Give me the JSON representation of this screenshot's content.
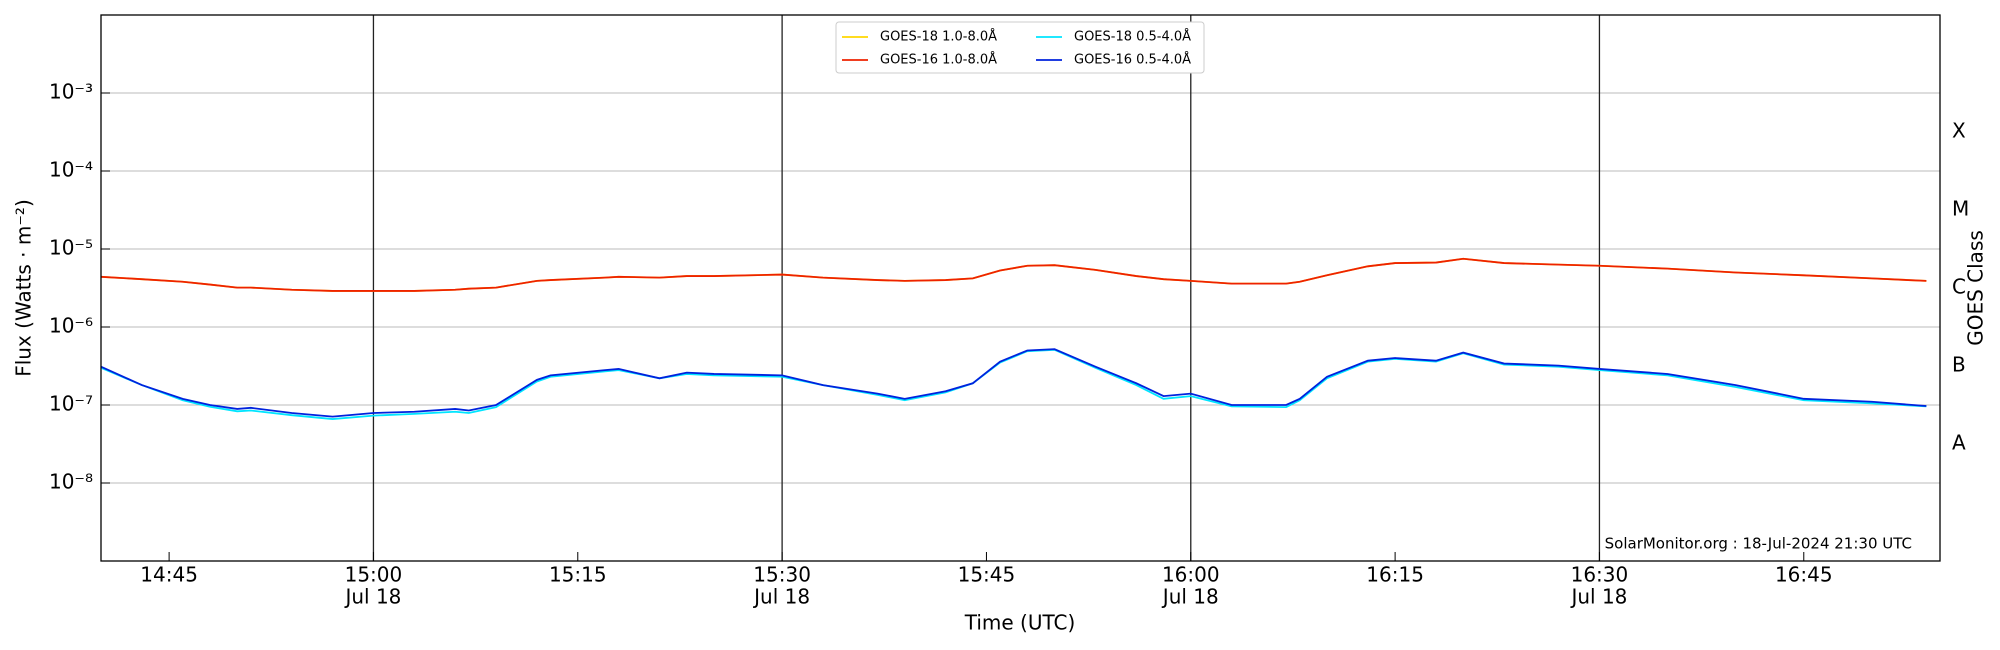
{
  "chart_data": {
    "type": "line",
    "xlabel": "Time (UTC)",
    "ylabel": "Flux (Watts · m⁻²)",
    "y2label": "GOES Class",
    "annotation": "SolarMonitor.org : 18-Jul-2024 21:30 UTC",
    "log_y": true,
    "grid": true,
    "x_major_lines": true,
    "legend": "top-center",
    "xlim": [
      "14:40",
      "16:55"
    ],
    "ylim": [
      1e-09,
      0.01
    ],
    "yticks": [
      {
        "value": 1e-08,
        "label": "10⁻⁸"
      },
      {
        "value": 1e-07,
        "label": "10⁻⁷"
      },
      {
        "value": 1e-06,
        "label": "10⁻⁶"
      },
      {
        "value": 1e-05,
        "label": "10⁻⁵"
      },
      {
        "value": 0.0001,
        "label": "10⁻⁴"
      },
      {
        "value": 0.001,
        "label": "10⁻³"
      }
    ],
    "y2lim": [
      1e-09,
      0.01
    ],
    "y2ticks": [
      {
        "value": 3.16e-08,
        "label": "A"
      },
      {
        "value": 3.16e-07,
        "label": "B"
      },
      {
        "value": 3.16e-06,
        "label": "C"
      },
      {
        "value": 3.16e-05,
        "label": "M"
      },
      {
        "value": 0.000316,
        "label": "X"
      }
    ],
    "xticks": [
      "14:45",
      {
        "value": "15:00",
        "label": "15:00",
        "sublabel": "Jul 18"
      },
      "15:15",
      {
        "value": "15:30",
        "label": "15:30",
        "sublabel": "Jul 18"
      },
      "15:45",
      {
        "value": "16:00",
        "label": "16:00",
        "sublabel": "Jul 18"
      },
      "16:15",
      {
        "value": "16:30",
        "label": "16:30",
        "sublabel": "Jul 18"
      },
      "16:45"
    ],
    "x": [
      "14:40",
      "14:43",
      "14:46",
      "14:48",
      "14:50",
      "14:51",
      "14:54",
      "14:57",
      "15:00",
      "15:03",
      "15:06",
      "15:07",
      "15:09",
      "15:12",
      "15:13",
      "15:17",
      "15:18",
      "15:21",
      "15:23",
      "15:25",
      "15:30",
      "15:33",
      "15:37",
      "15:39",
      "15:42",
      "15:44",
      "15:46",
      "15:48",
      "15:50",
      "15:53",
      "15:56",
      "15:58",
      "16:00",
      "16:03",
      "16:07",
      "16:08",
      "16:10",
      "16:13",
      "16:15",
      "16:18",
      "16:20",
      "16:23",
      "16:27",
      "16:30",
      "16:35",
      "16:40",
      "16:45",
      "16:50",
      "16:54"
    ],
    "series": [
      {
        "name": "GOES-18 1.0-8.0Å",
        "color": "#ffd700",
        "values": [
          4.4e-06,
          4.1e-06,
          3.8e-06,
          3.5e-06,
          3.2e-06,
          3.2e-06,
          3e-06,
          2.9e-06,
          2.9e-06,
          2.9e-06,
          3e-06,
          3.1e-06,
          3.2e-06,
          3.9e-06,
          4e-06,
          4.3e-06,
          4.4e-06,
          4.3e-06,
          4.5e-06,
          4.5e-06,
          4.7e-06,
          4.3e-06,
          4e-06,
          3.9e-06,
          4e-06,
          4.2e-06,
          5.3e-06,
          6.1e-06,
          6.2e-06,
          5.4e-06,
          4.5e-06,
          4.1e-06,
          3.9e-06,
          3.6e-06,
          3.6e-06,
          3.8e-06,
          4.6e-06,
          6e-06,
          6.6e-06,
          6.7e-06,
          7.5e-06,
          6.6e-06,
          6.3e-06,
          6.1e-06,
          5.6e-06,
          5e-06,
          4.6e-06,
          4.2e-06,
          3.9e-06
        ]
      },
      {
        "name": "GOES-16 1.0-8.0Å",
        "color": "#ee2200",
        "values": [
          4.4e-06,
          4.1e-06,
          3.8e-06,
          3.5e-06,
          3.2e-06,
          3.2e-06,
          3e-06,
          2.9e-06,
          2.9e-06,
          2.9e-06,
          3e-06,
          3.1e-06,
          3.2e-06,
          3.9e-06,
          4e-06,
          4.3e-06,
          4.4e-06,
          4.3e-06,
          4.5e-06,
          4.5e-06,
          4.7e-06,
          4.3e-06,
          4e-06,
          3.9e-06,
          4e-06,
          4.2e-06,
          5.3e-06,
          6.1e-06,
          6.2e-06,
          5.4e-06,
          4.5e-06,
          4.1e-06,
          3.9e-06,
          3.6e-06,
          3.6e-06,
          3.8e-06,
          4.6e-06,
          6e-06,
          6.6e-06,
          6.7e-06,
          7.5e-06,
          6.6e-06,
          6.3e-06,
          6.1e-06,
          5.6e-06,
          5e-06,
          4.6e-06,
          4.2e-06,
          3.9e-06
        ]
      },
      {
        "name": "GOES-18 0.5-4.0Å",
        "color": "#00e5ff",
        "values": [
          3e-07,
          1.8e-07,
          1.15e-07,
          9.5e-08,
          8.3e-08,
          8.5e-08,
          7.4e-08,
          6.6e-08,
          7.3e-08,
          7.7e-08,
          8.2e-08,
          7.9e-08,
          9.4e-08,
          2e-07,
          2.3e-07,
          2.7e-07,
          2.8e-07,
          2.2e-07,
          2.5e-07,
          2.4e-07,
          2.3e-07,
          1.8e-07,
          1.35e-07,
          1.15e-07,
          1.45e-07,
          1.9e-07,
          3.5e-07,
          4.9e-07,
          5.1e-07,
          3e-07,
          1.8e-07,
          1.2e-07,
          1.3e-07,
          9.6e-08,
          9.4e-08,
          1.15e-07,
          2.2e-07,
          3.6e-07,
          3.9e-07,
          3.6e-07,
          4.6e-07,
          3.3e-07,
          3.1e-07,
          2.8e-07,
          2.4e-07,
          1.7e-07,
          1.15e-07,
          1.05e-07,
          9.6e-08
        ]
      },
      {
        "name": "GOES-16 0.5-4.0Å",
        "color": "#0022dd",
        "values": [
          3.1e-07,
          1.8e-07,
          1.2e-07,
          1e-07,
          8.9e-08,
          9.2e-08,
          7.9e-08,
          7.1e-08,
          7.9e-08,
          8.2e-08,
          8.9e-08,
          8.5e-08,
          1e-07,
          2.1e-07,
          2.4e-07,
          2.8e-07,
          2.9e-07,
          2.2e-07,
          2.6e-07,
          2.5e-07,
          2.4e-07,
          1.8e-07,
          1.4e-07,
          1.2e-07,
          1.5e-07,
          1.9e-07,
          3.6e-07,
          5e-07,
          5.2e-07,
          3.1e-07,
          1.9e-07,
          1.3e-07,
          1.4e-07,
          1e-07,
          1e-07,
          1.2e-07,
          2.3e-07,
          3.7e-07,
          4e-07,
          3.7e-07,
          4.7e-07,
          3.4e-07,
          3.2e-07,
          2.9e-07,
          2.5e-07,
          1.8e-07,
          1.2e-07,
          1.1e-07,
          9.7e-08
        ]
      }
    ]
  }
}
